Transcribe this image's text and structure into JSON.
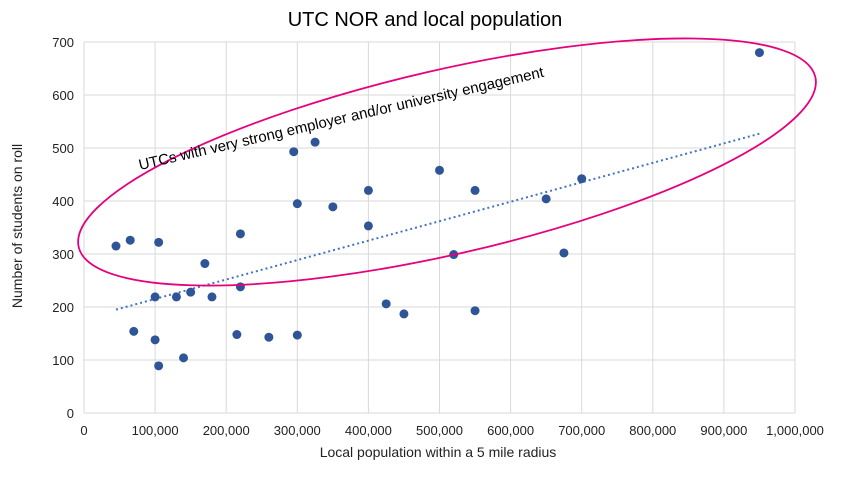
{
  "chart_data": {
    "type": "scatter",
    "title": "UTC NOR and local population",
    "xlabel": "Local population within a 5 mile radius",
    "ylabel": "Number of students on roll",
    "xlim": [
      0,
      1000000
    ],
    "ylim": [
      0,
      700
    ],
    "xticks": [
      0,
      100000,
      200000,
      300000,
      400000,
      500000,
      600000,
      700000,
      800000,
      900000,
      1000000
    ],
    "xtick_labels": [
      "0",
      "100,000",
      "200,000",
      "300,000",
      "400,000",
      "500,000",
      "600,000",
      "700,000",
      "800,000",
      "900,000",
      "1,000,000"
    ],
    "yticks": [
      0,
      100,
      200,
      300,
      400,
      500,
      600,
      700
    ],
    "ytick_labels": [
      "0",
      "100",
      "200",
      "300",
      "400",
      "500",
      "600",
      "700"
    ],
    "grid": true,
    "point_color": "#2f5597",
    "trendline": {
      "style": "dotted",
      "color": "#4472c4",
      "from": [
        45000,
        195
      ],
      "to": [
        950000,
        527
      ]
    },
    "highlight_color": "#e6007e",
    "annotation": "UTCs with very strong employer and/or university engagement",
    "points": [
      {
        "x": 45000,
        "y": 315
      },
      {
        "x": 65000,
        "y": 326
      },
      {
        "x": 70000,
        "y": 154
      },
      {
        "x": 100000,
        "y": 219
      },
      {
        "x": 100000,
        "y": 138
      },
      {
        "x": 105000,
        "y": 322
      },
      {
        "x": 105000,
        "y": 89
      },
      {
        "x": 130000,
        "y": 219
      },
      {
        "x": 140000,
        "y": 104
      },
      {
        "x": 150000,
        "y": 228
      },
      {
        "x": 170000,
        "y": 282
      },
      {
        "x": 180000,
        "y": 219
      },
      {
        "x": 215000,
        "y": 148
      },
      {
        "x": 220000,
        "y": 338
      },
      {
        "x": 220000,
        "y": 238
      },
      {
        "x": 260000,
        "y": 143
      },
      {
        "x": 295000,
        "y": 493
      },
      {
        "x": 300000,
        "y": 395
      },
      {
        "x": 300000,
        "y": 147
      },
      {
        "x": 325000,
        "y": 511
      },
      {
        "x": 350000,
        "y": 389
      },
      {
        "x": 400000,
        "y": 420
      },
      {
        "x": 400000,
        "y": 353
      },
      {
        "x": 425000,
        "y": 206
      },
      {
        "x": 450000,
        "y": 187
      },
      {
        "x": 500000,
        "y": 458
      },
      {
        "x": 520000,
        "y": 299
      },
      {
        "x": 550000,
        "y": 420
      },
      {
        "x": 550000,
        "y": 193
      },
      {
        "x": 650000,
        "y": 404
      },
      {
        "x": 675000,
        "y": 302
      },
      {
        "x": 700000,
        "y": 442
      },
      {
        "x": 950000,
        "y": 680
      }
    ]
  }
}
